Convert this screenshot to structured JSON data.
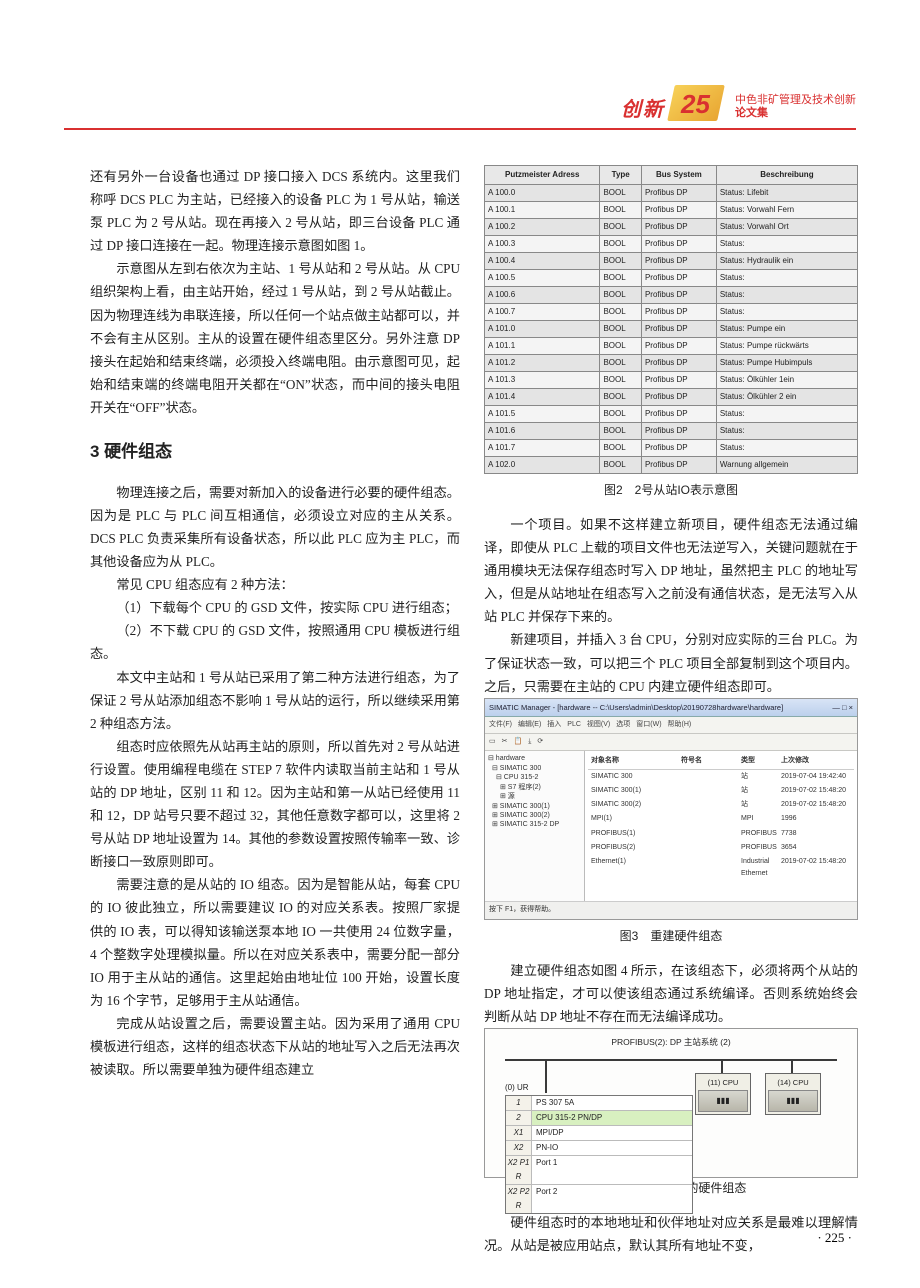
{
  "header": {
    "cn_bold": "创新",
    "logo_number": "25",
    "subline1": "中色非矿管理及技术创新",
    "subline2": "论文集"
  },
  "page_number": "· 225 ·",
  "left_col": {
    "p1": "还有另外一台设备也通过 DP 接口接入 DCS 系统内。这里我们称呼 DCS PLC 为主站，已经接入的设备 PLC 为 1 号从站，输送泵 PLC 为 2 号从站。现在再接入 2 号从站，即三台设备 PLC 通过 DP 接口连接在一起。物理连接示意图如图 1。",
    "p2": "示意图从左到右依次为主站、1 号从站和 2 号从站。从 CPU 组织架构上看，由主站开始，经过 1 号从站，到 2 号从站截止。因为物理连线为串联连接，所以任何一个站点做主站都可以，并不会有主从区别。主从的设置在硬件组态里区分。另外注意 DP 接头在起始和结束终端，必须投入终端电阻。由示意图可见，起始和结束端的终端电阻开关都在“ON”状态，而中间的接头电阻开关在“OFF”状态。",
    "sec3_title": "3 硬件组态",
    "p3": "物理连接之后，需要对新加入的设备进行必要的硬件组态。因为是 PLC 与 PLC 间互相通信，必须设立对应的主从关系。DCS PLC 负责采集所有设备状态，所以此 PLC 应为主 PLC，而其他设备应为从 PLC。",
    "p4": "常见 CPU 组态应有 2 种方法：",
    "p5": "（1）下载每个 CPU 的 GSD 文件，按实际 CPU 进行组态；",
    "p6": "（2）不下载 CPU 的 GSD 文件，按照通用 CPU 模板进行组态。",
    "p7": "本文中主站和 1 号从站已采用了第二种方法进行组态，为了保证 2 号从站添加组态不影响 1 号从站的运行，所以继续采用第 2 种组态方法。",
    "p8": "组态时应依照先从站再主站的原则，所以首先对 2 号从站进行设置。使用编程电缆在 STEP 7 软件内读取当前主站和 1 号从站的 DP 地址，区别 11 和 12。因为主站和第一从站已经使用 11 和 12，DP 站号只要不超过 32，其他任意数字都可以，这里将 2 号从站 DP 地址设置为 14。其他的参数设置按照传输率一致、诊断接口一致原则即可。",
    "p9": "需要注意的是从站的 IO 组态。因为是智能从站，每套 CPU 的 IO 彼此独立，所以需要建议 IO 的对应关系表。按照厂家提供的 IO 表，可以得知该输送泵本地 IO 一共使用 24 位数字量，4 个整数字处理模拟量。所以在对应关系表中，需要分配一部分 IO 用于主从站的通信。这里起始由地址位 100 开始，设置长度为 16 个字节，足够用于主从站通信。",
    "p10": "完成从站设置之后，需要设置主站。因为采用了通用 CPU 模板进行组态，这样的组态状态下从站的地址写入之后无法再次被读取。所以需要单独为硬件组态建立"
  },
  "right_col": {
    "table_headers": [
      "Putzmeister Adress",
      "Type",
      "Bus System",
      "Beschreibung"
    ],
    "table_rows": [
      [
        "A 100.0",
        "BOOL",
        "Profibus DP",
        "Status: Lifebit"
      ],
      [
        "A 100.1",
        "BOOL",
        "Profibus DP",
        "Status: Vorwahl Fern"
      ],
      [
        "A 100.2",
        "BOOL",
        "Profibus DP",
        "Status: Vorwahl Ort"
      ],
      [
        "A 100.3",
        "BOOL",
        "Profibus DP",
        "Status:"
      ],
      [
        "A 100.4",
        "BOOL",
        "Profibus DP",
        "Status: Hydraulik ein"
      ],
      [
        "A 100.5",
        "BOOL",
        "Profibus DP",
        "Status:"
      ],
      [
        "A 100.6",
        "BOOL",
        "Profibus DP",
        "Status:"
      ],
      [
        "A 100.7",
        "BOOL",
        "Profibus DP",
        "Status:"
      ],
      [
        "A 101.0",
        "BOOL",
        "Profibus DP",
        "Status: Pumpe ein"
      ],
      [
        "A 101.1",
        "BOOL",
        "Profibus DP",
        "Status: Pumpe rückwärts"
      ],
      [
        "A 101.2",
        "BOOL",
        "Profibus DP",
        "Status: Pumpe Hubimpuls"
      ],
      [
        "A 101.3",
        "BOOL",
        "Profibus DP",
        "Status: Ölkühler 1ein"
      ],
      [
        "A 101.4",
        "BOOL",
        "Profibus DP",
        "Status: Ölkühler 2 ein"
      ],
      [
        "A 101.5",
        "BOOL",
        "Profibus DP",
        "Status:"
      ],
      [
        "A 101.6",
        "BOOL",
        "Profibus DP",
        "Status:"
      ],
      [
        "A 101.7",
        "BOOL",
        "Profibus DP",
        "Status:"
      ],
      [
        "A 102.0",
        "BOOL",
        "Profibus DP",
        "Warnung allgemein"
      ]
    ],
    "caption2": "图2　2号从站IO表示意图",
    "p1": "一个项目。如果不这样建立新项目，硬件组态无法通过编译，即使从 PLC 上载的项目文件也无法逆写入，关键问题就在于通用模块无法保存组态时写入 DP 地址，虽然把主 PLC 的地址写入，但是从站地址在组态写入之前没有通信状态，是无法写入从站 PLC 并保存下来的。",
    "p2": "新建项目，并插入 3 台 CPU，分别对应实际的三台 PLC。为了保证状态一致，可以把三个 PLC 项目全部复制到这个项目内。之后，只需要在主站的 CPU 内建立硬件组态即可。",
    "fig3": {
      "title": "SIMATIC Manager - [hardware -- C:\\Users\\admin\\Desktop\\20190728hardware\\hardware]",
      "menu": [
        "文件(F)",
        "编辑(E)",
        "插入",
        "PLC",
        "视图(V)",
        "选项",
        "窗口(W)",
        "帮助(H)"
      ],
      "tree": [
        "⊟ hardware",
        " ⊟ SIMATIC 300",
        "  ⊟ CPU 315-2",
        "   ⊞ S7 程序(2)",
        "   ⊞ 源",
        " ⊞ SIMATIC 300(1)",
        " ⊞ SIMATIC 300(2)",
        " ⊞ SIMATIC 315-2 DP"
      ],
      "list_head": [
        "对象名称",
        "符号名",
        "类型",
        "上次修改"
      ],
      "list_rows": [
        [
          "SIMATIC 300",
          "",
          "站",
          "2019-07-04 19:42:40"
        ],
        [
          "SIMATIC 300(1)",
          "",
          "站",
          "2019-07-02 15:48:20"
        ],
        [
          "SIMATIC 300(2)",
          "",
          "站",
          "2019-07-02 15:48:20"
        ],
        [
          "MPI(1)",
          "",
          "MPI",
          "1996"
        ],
        [
          "PROFIBUS(1)",
          "",
          "PROFIBUS",
          "7738"
        ],
        [
          "PROFIBUS(2)",
          "",
          "PROFIBUS",
          "3654"
        ],
        [
          "Ethernet(1)",
          "",
          "Industrial Ethernet",
          "2019-07-02 15:48:20"
        ]
      ],
      "status": "按下 F1，获得帮助。"
    },
    "caption3": "图3　重建硬件组态",
    "p3": "建立硬件组态如图 4 所示，在该组态下，必须将两个从站的 DP 地址指定，才可以使该组态通过系统编译。否则系统始终会判断从站 DP 地址不存在而无法编译成功。",
    "fig4": {
      "bus_label": "PROFIBUS(2): DP 主站系统 (2)",
      "master_label": "(0) UR",
      "slave1_label": "(11) CPU",
      "slave2_label": "(14) CPU",
      "rack_rows": [
        [
          "1",
          "PS 307 5A"
        ],
        [
          "2",
          "CPU 315-2 PN/DP"
        ],
        [
          "X1",
          "MPI/DP"
        ],
        [
          "X2",
          "PN-IO"
        ],
        [
          "X2 P1 R",
          "Port 1"
        ],
        [
          "X2 P2 R",
          "Port 2"
        ]
      ]
    },
    "caption4": "图4　编译成功后的硬件组态",
    "p4": "硬件组态时的本地地址和伙伴地址对应关系是最难以理解情况。从站是被应用站点，默认其所有地址不变，"
  }
}
